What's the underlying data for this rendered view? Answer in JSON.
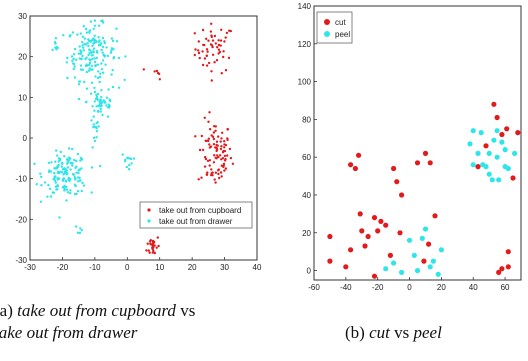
{
  "colors": {
    "series_a": "#e31a1c",
    "series_b": "#2ee6ea",
    "axis": "#333333"
  },
  "chart_data": [
    {
      "type": "scatter",
      "xlim": [
        -30,
        40
      ],
      "ylim": [
        -30,
        30
      ],
      "xticks": [
        "-30",
        "-20",
        "-10",
        "0",
        "10",
        "20",
        "30",
        "40"
      ],
      "yticks": [
        "-30",
        "-20",
        "-10",
        "0",
        "10",
        "20",
        "30"
      ],
      "legend_position": "lower-right",
      "series": [
        {
          "name": "take out from cupboard",
          "color": "#e31a1c"
        },
        {
          "name": "take out from drawer",
          "color": "#2ee6ea"
        }
      ],
      "clusters": [
        {
          "series": 0,
          "cx": 27,
          "cy": 22,
          "sx": 4,
          "sy": 4,
          "n": 55
        },
        {
          "series": 0,
          "cx": 27,
          "cy": -4,
          "sx": 3.5,
          "sy": 5.5,
          "n": 95
        },
        {
          "series": 0,
          "cx": 8,
          "cy": -26.5,
          "sx": 1.3,
          "sy": 1.8,
          "n": 25
        },
        {
          "series": 0,
          "cx": 9,
          "cy": 16,
          "sx": 1.5,
          "sy": 1,
          "n": 6
        },
        {
          "series": 1,
          "cx": -11,
          "cy": 21,
          "sx": 5,
          "sy": 4.5,
          "n": 160
        },
        {
          "series": 1,
          "cx": -8,
          "cy": 9,
          "sx": 3,
          "sy": 3,
          "n": 50
        },
        {
          "series": 1,
          "cx": -10,
          "cy": 1,
          "sx": 1,
          "sy": 3,
          "n": 15
        },
        {
          "series": 1,
          "cx": -19,
          "cy": -9,
          "sx": 4.5,
          "sy": 3.5,
          "n": 150
        },
        {
          "series": 1,
          "cx": 0,
          "cy": -5.5,
          "sx": 1.2,
          "sy": 1.3,
          "n": 12
        },
        {
          "series": 1,
          "cx": -22,
          "cy": 23,
          "sx": 1.5,
          "sy": 1.5,
          "n": 8
        },
        {
          "series": 1,
          "cx": -15,
          "cy": -22.5,
          "sx": 1,
          "sy": 1,
          "n": 5
        }
      ]
    },
    {
      "type": "scatter",
      "xlim": [
        -60,
        70
      ],
      "ylim": [
        -5,
        140
      ],
      "xticks": [
        "-60",
        "-40",
        "-20",
        "0",
        "20",
        "40",
        "60"
      ],
      "yticks": [
        "0",
        "20",
        "40",
        "60",
        "80",
        "100",
        "120",
        "140"
      ],
      "legend_position": "top-left",
      "series": [
        {
          "name": "cut",
          "color": "#e31a1c",
          "x": [
            -50,
            -34,
            -37,
            -32,
            -50,
            -37,
            -31,
            -22,
            -18,
            -26,
            -20,
            -15,
            -10,
            -8,
            -5,
            -6,
            -30,
            -40,
            -28,
            -22,
            -12,
            5,
            10,
            13,
            16,
            9,
            12,
            43,
            48,
            53,
            55,
            58,
            61,
            65,
            68,
            62,
            56,
            58,
            62
          ],
          "y": [
            5,
            54,
            56,
            61,
            18,
            11,
            30,
            28,
            26,
            18,
            21,
            24,
            54,
            47,
            40,
            20,
            21,
            2,
            13,
            -3,
            8,
            57,
            62,
            57,
            29,
            5,
            14,
            55,
            66,
            88,
            81,
            72,
            75,
            49,
            73,
            10,
            -1,
            1,
            2
          ]
        },
        {
          "name": "peel",
          "color": "#2ee6ea",
          "x": [
            38,
            40,
            43,
            46,
            50,
            53,
            55,
            55,
            58,
            60,
            45,
            48,
            52,
            56,
            60,
            62,
            50,
            66,
            40,
            -10,
            -5,
            0,
            5,
            10,
            13,
            18,
            15,
            20,
            -15,
            3,
            8
          ],
          "y": [
            67,
            74,
            62,
            56,
            62,
            69,
            60,
            74,
            68,
            64,
            73,
            55,
            48,
            48,
            55,
            54,
            51,
            62,
            56,
            4,
            -1,
            16,
            0,
            22,
            2,
            -2,
            5,
            11,
            1,
            8,
            17
          ]
        }
      ]
    }
  ],
  "captions": {
    "a": {
      "line1_pre": "(a) ",
      "line1_it": "take out from cupboard",
      "line1_post": " vs",
      "line2_it": "take out from drawer"
    },
    "b": {
      "pre": "(b) ",
      "it1": "cut",
      "mid": " vs ",
      "it2": "peel"
    }
  }
}
